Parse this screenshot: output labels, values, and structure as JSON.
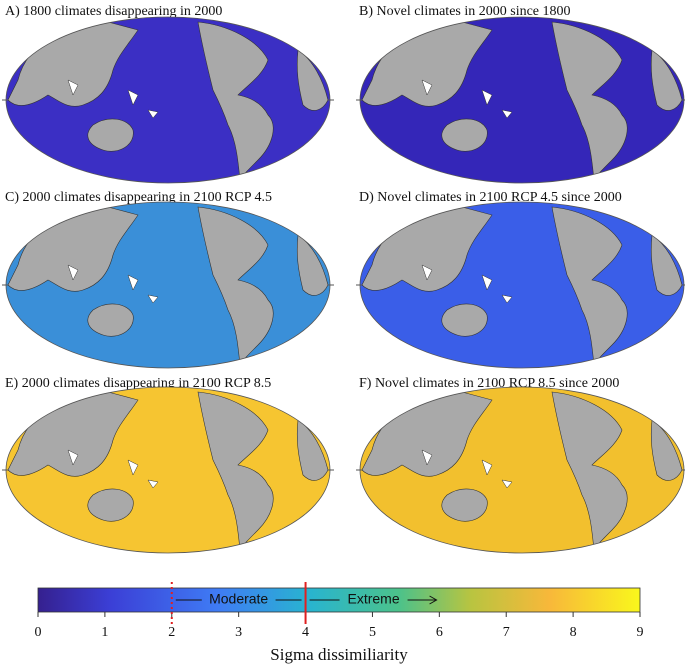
{
  "panels": [
    {
      "title": "A) 1800 climates disappearing in 2000",
      "color": "#3b2fc4"
    },
    {
      "title": "B) Novel climates in 2000 since 1800",
      "color": "#3426b8"
    },
    {
      "title": "C) 2000 climates disappearing in 2100 RCP 4.5",
      "color": "#3a8fd8"
    },
    {
      "title": "D) Novel climates in 2100 RCP 4.5 since 2000",
      "color": "#3a5ee8"
    },
    {
      "title": "E) 2000 climates disappearing in 2100 RCP 8.5",
      "color": "#f6c531"
    },
    {
      "title": "F) Novel climates in 2100 RCP 8.5 since 2000",
      "color": "#f2c02e"
    }
  ],
  "colorbar": {
    "label": "Sigma dissimiliarity",
    "range": [
      0,
      9
    ],
    "ticks": [
      0,
      1,
      2,
      3,
      4,
      5,
      6,
      7,
      8,
      9
    ],
    "thresholds": [
      {
        "value": 2,
        "style": "dotted",
        "color": "#e02020"
      },
      {
        "value": 4,
        "style": "solid",
        "color": "#e02020"
      }
    ],
    "annotations": [
      "Moderate",
      "Extreme"
    ]
  }
}
